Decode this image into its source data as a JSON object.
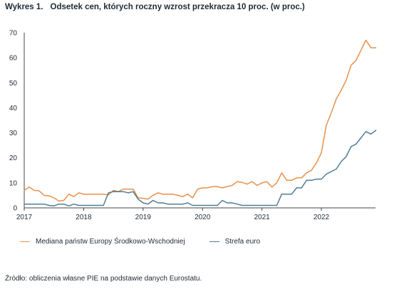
{
  "figure": {
    "label": "Wykres 1.",
    "title": "Odsetek cen, których roczny wzrost przekracza 10 proc. (w proc.)",
    "source": "Źródło: obliczenia własne PIE na podstawie danych Eurostatu."
  },
  "chart_data": {
    "type": "line",
    "title": "Odsetek cen, których roczny wzrost przekracza 10 proc. (w proc.)",
    "xlabel": "",
    "ylabel": "",
    "x_ticks": [
      "2017",
      "2018",
      "2019",
      "2020",
      "2021",
      "2022"
    ],
    "y_ticks": [
      0,
      10,
      20,
      30,
      40,
      50,
      60,
      70
    ],
    "ylim": [
      0,
      70
    ],
    "x_start": "2017-01",
    "frequency": "monthly",
    "grid": false,
    "legend_position": "bottom",
    "series": [
      {
        "name": "Mediana państw Europy Środkowo-Wschodniej",
        "color": "#e8914a",
        "values": [
          7.0,
          8.3,
          7.0,
          6.8,
          5.0,
          4.8,
          4.0,
          2.7,
          3.0,
          5.5,
          4.5,
          6.0,
          5.5,
          5.5,
          5.5,
          5.5,
          5.5,
          5.2,
          7.0,
          6.5,
          7.5,
          7.5,
          7.5,
          4.0,
          3.8,
          3.5,
          5.0,
          6.0,
          5.5,
          5.5,
          5.5,
          5.0,
          4.5,
          5.5,
          4.0,
          7.5,
          8.0,
          8.0,
          8.5,
          8.5,
          8.0,
          8.5,
          9.0,
          10.5,
          10.2,
          9.5,
          10.5,
          9.0,
          10.0,
          10.5,
          8.3,
          10.0,
          14.0,
          11.0,
          11.0,
          12.0,
          12.0,
          14.0,
          15.0,
          18.0,
          22.0,
          33.0,
          38.0,
          43.5,
          47.0,
          51.0,
          57.0,
          59.0,
          63.0,
          67.0,
          64.0,
          64.0
        ]
      },
      {
        "name": "Strefa euro",
        "color": "#4f7d97",
        "values": [
          1.5,
          1.5,
          1.5,
          1.5,
          1.5,
          1.0,
          0.8,
          1.5,
          1.5,
          0.8,
          1.5,
          1.0,
          1.0,
          1.0,
          1.0,
          1.0,
          1.0,
          6.0,
          6.5,
          6.5,
          6.5,
          6.0,
          6.5,
          3.5,
          2.0,
          1.5,
          3.0,
          2.0,
          2.0,
          1.5,
          1.5,
          1.5,
          1.5,
          2.0,
          1.0,
          1.0,
          1.0,
          1.0,
          1.0,
          1.0,
          3.0,
          2.0,
          2.0,
          1.5,
          1.0,
          1.0,
          1.0,
          1.0,
          1.0,
          1.0,
          1.0,
          1.0,
          5.5,
          5.5,
          5.5,
          8.0,
          8.0,
          11.0,
          11.0,
          11.5,
          11.5,
          13.5,
          14.5,
          15.5,
          18.5,
          20.5,
          24.5,
          25.5,
          28.0,
          30.5,
          29.5,
          31.0
        ]
      }
    ]
  }
}
